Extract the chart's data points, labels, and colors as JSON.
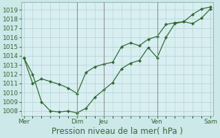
{
  "xlabel": "Pression niveau de la mer( hPa )",
  "background_color": "#cce8e8",
  "plot_bg_color": "#d8eef0",
  "grid_color": "#b0d0d0",
  "line_color": "#2d6a2d",
  "marker_color": "#2d6a2d",
  "ylim": [
    1007.5,
    1019.8
  ],
  "yticks": [
    1008,
    1009,
    1010,
    1011,
    1012,
    1013,
    1014,
    1015,
    1016,
    1017,
    1018,
    1019
  ],
  "xtick_labels": [
    "Mer",
    "",
    "Dim",
    "Jeu",
    "",
    "Ven",
    "",
    "Sam"
  ],
  "xtick_positions": [
    0,
    3,
    6,
    9,
    12,
    15,
    18,
    21
  ],
  "xlim": [
    -0.3,
    21.3
  ],
  "line1_x": [
    0,
    1,
    2,
    3,
    4,
    5,
    6,
    7,
    8,
    9,
    10,
    11,
    12,
    13,
    14,
    15,
    16,
    17,
    18,
    19,
    20,
    21
  ],
  "line1_y": [
    1013.8,
    1012.0,
    1009.0,
    1008.0,
    1007.9,
    1008.0,
    1007.8,
    1008.3,
    1009.5,
    1010.3,
    1011.1,
    1012.6,
    1013.2,
    1013.5,
    1014.9,
    1013.8,
    1016.0,
    1017.5,
    1017.7,
    1017.5,
    1018.1,
    1019.1
  ],
  "line2_x": [
    0,
    1,
    2,
    3,
    4,
    5,
    6,
    7,
    8,
    9,
    10,
    11,
    12,
    13,
    14,
    15,
    16,
    17,
    18,
    19,
    20,
    21
  ],
  "line2_y": [
    1013.8,
    1011.0,
    1011.5,
    1011.2,
    1010.9,
    1010.5,
    1009.9,
    1012.2,
    1012.8,
    1013.1,
    1013.3,
    1015.0,
    1015.4,
    1015.1,
    1015.8,
    1016.1,
    1017.4,
    1017.6,
    1017.7,
    1018.5,
    1019.1,
    1019.3
  ],
  "vline_positions": [
    6,
    9,
    15
  ],
  "vline_color": "#888888",
  "font_size_tick": 6.5,
  "font_size_xlabel": 8.5,
  "tick_color": "#336633"
}
